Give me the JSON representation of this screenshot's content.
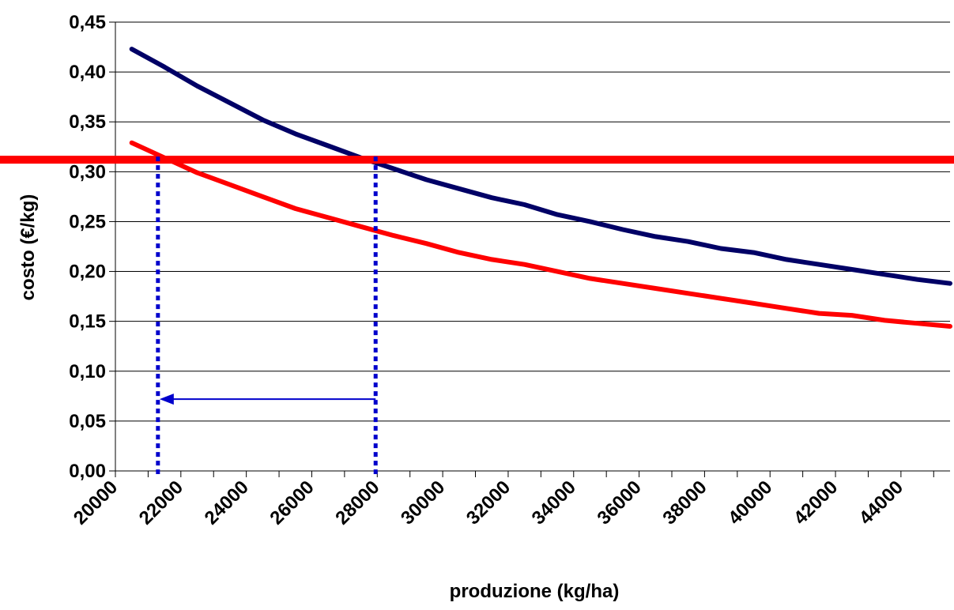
{
  "chart_data": {
    "type": "line",
    "title": "",
    "xlabel": "produzione (kg/ha)",
    "ylabel": "costo (€/kg)",
    "x": [
      20500,
      21500,
      22500,
      23500,
      24500,
      25500,
      26500,
      27500,
      28500,
      29500,
      30500,
      31500,
      32500,
      33500,
      34500,
      35500,
      36500,
      37500,
      38500,
      39500,
      40500,
      41500,
      42500,
      43500,
      44500,
      45500
    ],
    "x_tick_labels": [
      "20000",
      "22000",
      "24000",
      "26000",
      "28000",
      "30000",
      "32000",
      "34000",
      "36000",
      "38000",
      "40000",
      "42000",
      "44000"
    ],
    "x_ticks": [
      20000,
      22000,
      24000,
      26000,
      28000,
      30000,
      32000,
      34000,
      36000,
      38000,
      40000,
      42000,
      44000
    ],
    "xlim": [
      20000,
      45500
    ],
    "y_tick_labels": [
      "0,00",
      "0,05",
      "0,10",
      "0,15",
      "0,20",
      "0,25",
      "0,30",
      "0,35",
      "0,40",
      "0,45"
    ],
    "y_ticks": [
      0,
      0.05,
      0.1,
      0.15,
      0.2,
      0.25,
      0.3,
      0.35,
      0.4,
      0.45
    ],
    "ylim": [
      0,
      0.45
    ],
    "grid": "horizontal",
    "series": [
      {
        "color": "#000066",
        "values": [
          0.423,
          0.405,
          0.386,
          0.369,
          0.352,
          0.338,
          0.326,
          0.314,
          0.303,
          0.292,
          0.283,
          0.274,
          0.267,
          0.257,
          0.25,
          0.242,
          0.235,
          0.23,
          0.223,
          0.219,
          0.212,
          0.207,
          0.202,
          0.197,
          0.192,
          0.188
        ]
      },
      {
        "color": "#ff0000",
        "values": [
          0.329,
          0.314,
          0.299,
          0.287,
          0.275,
          0.263,
          0.254,
          0.245,
          0.236,
          0.228,
          0.219,
          0.212,
          0.207,
          0.2,
          0.193,
          0.188,
          0.183,
          0.178,
          0.173,
          0.168,
          0.163,
          0.158,
          0.156,
          0.151,
          0.148,
          0.145
        ]
      }
    ],
    "reference_line": {
      "y": 0.312,
      "color": "#ff0000"
    },
    "drop_lines": {
      "x": [
        21300,
        27950
      ],
      "color": "#0000cc"
    },
    "arrow": {
      "from_x": 27950,
      "to_x": 21300,
      "y": 0.072,
      "color": "#0000cc"
    }
  }
}
